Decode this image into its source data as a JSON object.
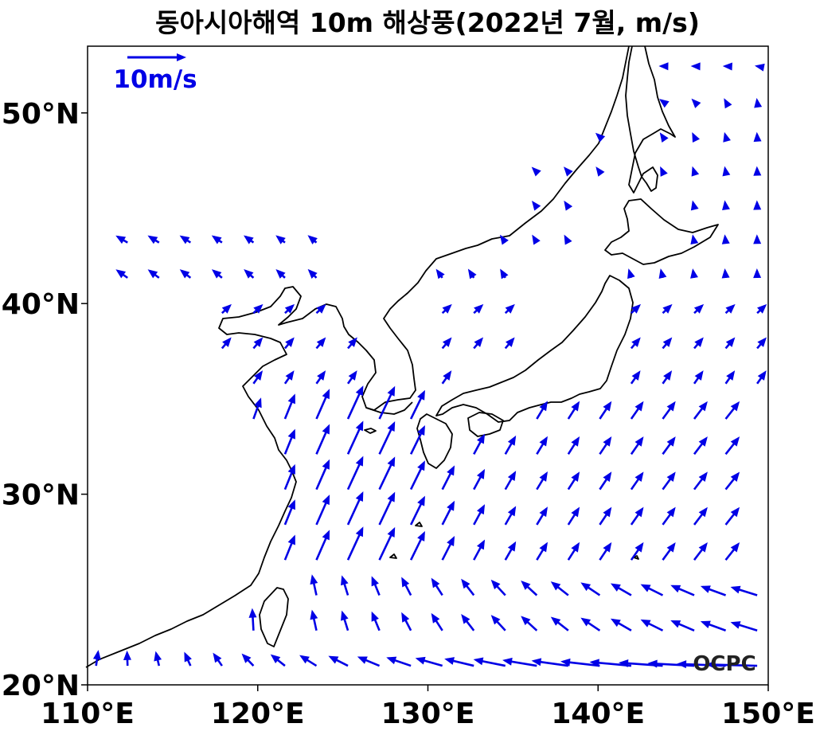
{
  "title": "동아시아해역 10m 해상풍(2022년 7월, m/s)",
  "reference_vector": {
    "label": "10m/s",
    "speed": 10
  },
  "logo_text": "OCPC",
  "colors": {
    "vector": "#0000e6",
    "coast": "#000000",
    "frame": "#000000"
  },
  "map": {
    "lon_range": [
      110,
      150
    ],
    "lat_range": [
      20,
      53.5
    ],
    "x_ticks": [
      {
        "lon": 110,
        "label": "110°E"
      },
      {
        "lon": 120,
        "label": "120°E"
      },
      {
        "lon": 130,
        "label": "130°E"
      },
      {
        "lon": 140,
        "label": "140°E"
      },
      {
        "lon": 150,
        "label": "150°E"
      }
    ],
    "y_ticks": [
      {
        "lat": 20,
        "label": "20°N"
      },
      {
        "lat": 30,
        "label": "30°N"
      },
      {
        "lat": 40,
        "label": "40°N"
      },
      {
        "lat": 50,
        "label": "50°N"
      }
    ]
  },
  "wind_field_note_free": true
}
